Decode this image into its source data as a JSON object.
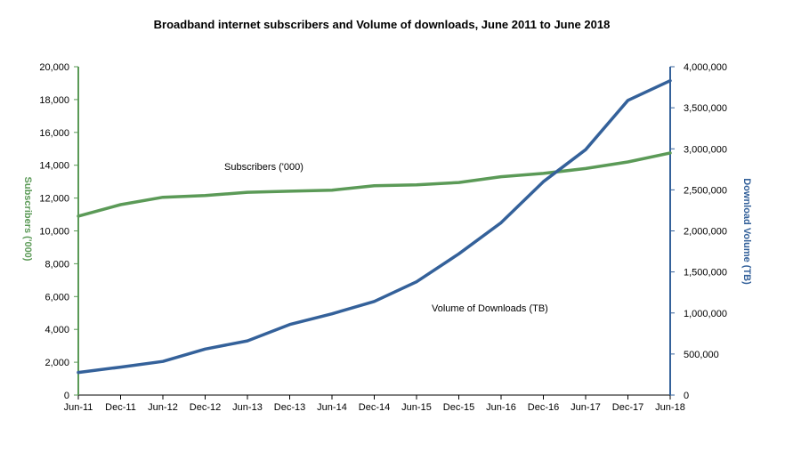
{
  "chart_data": {
    "type": "line",
    "title": "Broadband  internet subscribers and Volume of downloads, June 2011  to June 2018",
    "categories": [
      "Jun-11",
      "Dec-11",
      "Jun-12",
      "Dec-12",
      "Jun-13",
      "Dec-13",
      "Jun-14",
      "Dec-14",
      "Jun-15",
      "Dec-15",
      "Jun-16",
      "Dec-16",
      "Jun-17",
      "Dec-17",
      "Jun-18"
    ],
    "series": [
      {
        "name": "Subscribers ('000)",
        "axis": "left",
        "color": "#5b9a57",
        "values": [
          10900,
          11600,
          12050,
          12150,
          12350,
          12420,
          12480,
          12750,
          12800,
          12950,
          13300,
          13500,
          13800,
          14200,
          14750
        ]
      },
      {
        "name": "Volume of Downloads (TB)",
        "axis": "right",
        "color": "#34619a",
        "values": [
          275000,
          340000,
          410000,
          560000,
          660000,
          860000,
          990000,
          1140000,
          1380000,
          1720000,
          2100000,
          2600000,
          2990000,
          3590000,
          3830000
        ]
      }
    ],
    "ylabel_left": "Subscribers ('000)",
    "ylabel_right": "Download Volume (TB)",
    "ylim_left": [
      0,
      20000
    ],
    "ylim_right": [
      0,
      4000000
    ],
    "yticks_left": [
      "0",
      "2,000",
      "4,000",
      "6,000",
      "8,000",
      "10,000",
      "12,000",
      "14,000",
      "16,000",
      "18,000",
      "20,000"
    ],
    "yticks_right": [
      "0",
      "500,000",
      "1,000,000",
      "1,500,000",
      "2,000,000",
      "2,500,000",
      "3,000,000",
      "3,500,000",
      "4,000,000"
    ],
    "annotations": {
      "subscribers": "Subscribers ('000)",
      "downloads": "Volume of Downloads (TB)"
    },
    "grid": false
  }
}
